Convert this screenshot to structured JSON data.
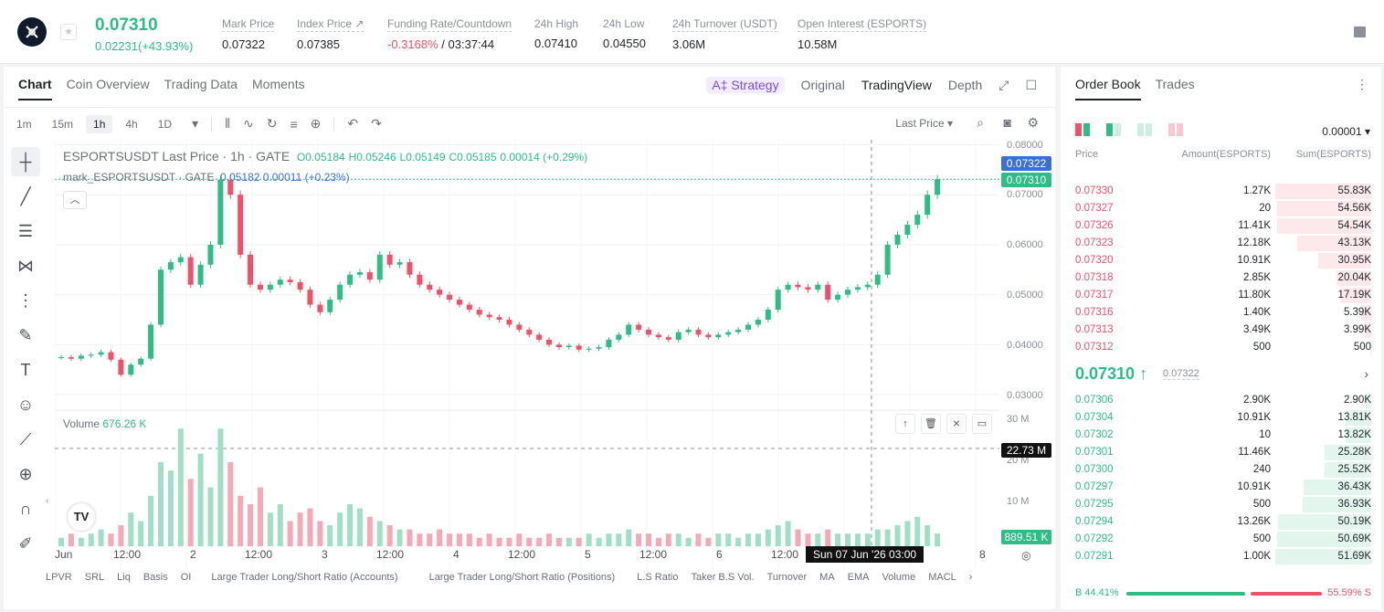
{
  "header": {
    "price": "0.07310",
    "change": "0.02231(+43.93%)",
    "stats": [
      {
        "label": "Mark Price",
        "value": "0.07322"
      },
      {
        "label": "Index Price ↗",
        "value": "0.07385"
      },
      {
        "label": "Funding Rate/Countdown",
        "value_red": "-0.3168%",
        "value": "/ 03:37:44"
      },
      {
        "label": "24h High",
        "value": "0.07410"
      },
      {
        "label": "24h Low",
        "value": "0.04550"
      },
      {
        "label": "24h Turnover (USDT)",
        "value": "3.06M"
      },
      {
        "label": "Open Interest (ESPORTS)",
        "value": "10.58M"
      }
    ]
  },
  "chart_tabs": [
    "Chart",
    "Coin Overview",
    "Trading Data",
    "Moments"
  ],
  "views": {
    "strategy": "A‡ Strategy",
    "original": "Original",
    "tradingview": "TradingView",
    "depth": "Depth"
  },
  "timeframes": [
    "1m",
    "15m",
    "1h",
    "4h",
    "1D"
  ],
  "last_price_select": "Last Price",
  "legend": {
    "symbol": "ESPORTSUSDT Last Price · 1h · GATE",
    "o": "O0.05184",
    "h": "H0.05246",
    "l": "L0.05149",
    "c": "C0.05185",
    "chg": "0.00014 (+0.29%)",
    "mark_label": "mark_ESPORTSUSDT · GATE",
    "mark_vals": "0.05182  0.00011 (+0.23%)"
  },
  "volume_legend": {
    "label": "Volume",
    "value": "676.26 K"
  },
  "y_price_labels": [
    "0.08000",
    "0.07000",
    "0.06000",
    "0.05000",
    "0.04000",
    "0.03000"
  ],
  "y_tags": {
    "mark": "0.07322",
    "last": "0.07310",
    "cross": "22.73 M",
    "vol": "889.51 K"
  },
  "y_vol_labels": [
    "30 M",
    "20 M",
    "10 M"
  ],
  "x_labels": [
    "Jun",
    "12:00",
    "2",
    "12:00",
    "3",
    "12:00",
    "4",
    "12:00",
    "5",
    "12:00",
    "6",
    "12:00",
    "8"
  ],
  "crosshair_time": "Sun 07 Jun '26   03:00",
  "indicators": [
    "LPVR",
    "SRL",
    "Liq",
    "Basis",
    "OI",
    "Large Trader Long/Short Ratio (Accounts)",
    "Large Trader Long/Short Ratio (Positions)",
    "L.S Ratio",
    "Taker B.S Vol.",
    "Turnover",
    "MA",
    "EMA",
    "Volume",
    "MACL"
  ],
  "orderbook": {
    "tabs": [
      "Order Book",
      "Trades"
    ],
    "precision": "0.00001 ▾",
    "headers": {
      "price": "Price",
      "amount": "Amount(ESPORTS)",
      "sum": "Sum(ESPORTS)"
    },
    "asks": [
      {
        "price": "0.07330",
        "amount": "1.27K",
        "sum": "55.83K",
        "depth": 1.0
      },
      {
        "price": "0.07327",
        "amount": "20",
        "sum": "54.56K",
        "depth": 0.98
      },
      {
        "price": "0.07326",
        "amount": "11.41K",
        "sum": "54.54K",
        "depth": 0.98
      },
      {
        "price": "0.07323",
        "amount": "12.18K",
        "sum": "43.13K",
        "depth": 0.77
      },
      {
        "price": "0.07320",
        "amount": "10.91K",
        "sum": "30.95K",
        "depth": 0.55
      },
      {
        "price": "0.07318",
        "amount": "2.85K",
        "sum": "20.04K",
        "depth": 0.36
      },
      {
        "price": "0.07317",
        "amount": "11.80K",
        "sum": "17.19K",
        "depth": 0.31
      },
      {
        "price": "0.07316",
        "amount": "1.40K",
        "sum": "5.39K",
        "depth": 0.1
      },
      {
        "price": "0.07313",
        "amount": "3.49K",
        "sum": "3.99K",
        "depth": 0.07
      },
      {
        "price": "0.07312",
        "amount": "500",
        "sum": "500",
        "depth": 0.01
      }
    ],
    "mid": {
      "price": "0.07310 ↑",
      "mark": "0.07322"
    },
    "bids": [
      {
        "price": "0.07306",
        "amount": "2.90K",
        "sum": "2.90K",
        "depth": 0.06
      },
      {
        "price": "0.07304",
        "amount": "10.91K",
        "sum": "13.81K",
        "depth": 0.27
      },
      {
        "price": "0.07302",
        "amount": "10",
        "sum": "13.82K",
        "depth": 0.27
      },
      {
        "price": "0.07301",
        "amount": "11.46K",
        "sum": "25.28K",
        "depth": 0.49
      },
      {
        "price": "0.07300",
        "amount": "240",
        "sum": "25.52K",
        "depth": 0.49
      },
      {
        "price": "0.07297",
        "amount": "10.91K",
        "sum": "36.43K",
        "depth": 0.7
      },
      {
        "price": "0.07295",
        "amount": "500",
        "sum": "36.93K",
        "depth": 0.71
      },
      {
        "price": "0.07294",
        "amount": "13.26K",
        "sum": "50.19K",
        "depth": 0.97
      },
      {
        "price": "0.07292",
        "amount": "500",
        "sum": "50.69K",
        "depth": 0.98
      },
      {
        "price": "0.07291",
        "amount": "1.00K",
        "sum": "51.69K",
        "depth": 1.0
      }
    ],
    "buy_ratio": "B 44.41%",
    "sell_ratio": "55.59% S"
  },
  "colors": {
    "up": "#2ebd85",
    "down": "#f0516a",
    "blue": "#3a6fd8"
  },
  "chart_data": {
    "type": "candlestick",
    "title": "ESPORTSUSDT Last Price · 1h · GATE",
    "ylim": [
      0.028,
      0.081
    ],
    "close_series": [
      0.0375,
      0.0372,
      0.0378,
      0.038,
      0.0385,
      0.037,
      0.034,
      0.036,
      0.0372,
      0.044,
      0.055,
      0.0565,
      0.0575,
      0.052,
      0.056,
      0.06,
      0.073,
      0.07,
      0.058,
      0.052,
      0.051,
      0.052,
      0.053,
      0.0525,
      0.051,
      0.048,
      0.0465,
      0.049,
      0.052,
      0.054,
      0.0545,
      0.053,
      0.058,
      0.056,
      0.0565,
      0.054,
      0.052,
      0.051,
      0.05,
      0.049,
      0.048,
      0.047,
      0.046,
      0.0455,
      0.045,
      0.044,
      0.043,
      0.042,
      0.041,
      0.04,
      0.0395,
      0.0398,
      0.039,
      0.0392,
      0.0395,
      0.041,
      0.042,
      0.044,
      0.043,
      0.042,
      0.0415,
      0.041,
      0.0425,
      0.043,
      0.042,
      0.0415,
      0.042,
      0.0425,
      0.043,
      0.044,
      0.045,
      0.047,
      0.051,
      0.052,
      0.0515,
      0.051,
      0.052,
      0.049,
      0.05,
      0.051,
      0.0515,
      0.052,
      0.054,
      0.06,
      0.062,
      0.064,
      0.066,
      0.07,
      0.0731
    ],
    "volume_series": [
      2,
      3,
      2,
      3,
      4,
      3,
      5,
      8,
      6,
      12,
      20,
      18,
      28,
      16,
      22,
      14,
      28,
      20,
      12,
      10,
      14,
      8,
      10,
      6,
      8,
      9,
      6,
      5,
      8,
      10,
      9,
      7,
      6,
      5,
      4,
      4,
      3,
      3,
      4,
      3,
      3,
      3,
      2,
      3,
      2,
      2,
      3,
      2,
      2,
      3,
      2,
      2,
      2,
      3,
      2,
      3,
      3,
      4,
      3,
      3,
      2,
      3,
      3,
      2,
      3,
      2,
      3,
      3,
      2,
      3,
      3,
      4,
      5,
      6,
      4,
      3,
      3,
      4,
      3,
      3,
      3,
      3,
      4,
      4,
      5,
      6,
      7,
      5,
      3
    ]
  }
}
